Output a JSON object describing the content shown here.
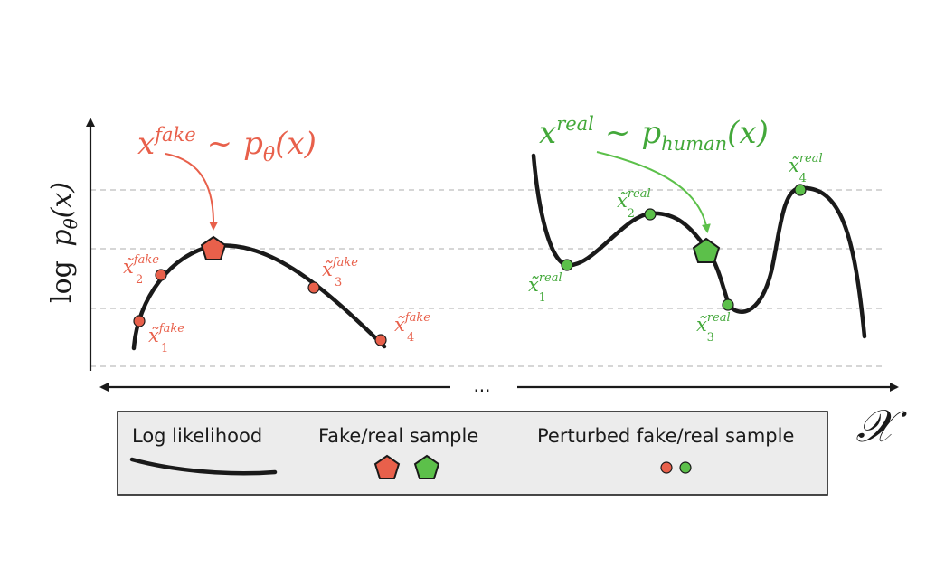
{
  "colors": {
    "fake": "#e8604b",
    "real": "#5cc04a",
    "real_text": "#43a83a",
    "curve": "#1a1a1a",
    "grid": "#c8c8c8",
    "legend_bg": "#ececec"
  },
  "y_axis": {
    "label_log": "log",
    "label_p": "p",
    "label_theta": "θ",
    "label_x": "(x)"
  },
  "x_axis": {
    "symbol": "𝒳",
    "ellipsis": "..."
  },
  "fake_title": {
    "x": "x",
    "sup": "fake",
    "tilde": "~",
    "p": "p",
    "sub": "θ",
    "arg": "(x)"
  },
  "real_title": {
    "x": "x",
    "sup": "real",
    "tilde": "~",
    "p": "p",
    "sub": "human",
    "arg": "(x)"
  },
  "fake_points": [
    {
      "base": "x̃",
      "sup": "fake",
      "sub": "1"
    },
    {
      "base": "x̃",
      "sup": "fake",
      "sub": "2"
    },
    {
      "base": "x̃",
      "sup": "fake",
      "sub": "3"
    },
    {
      "base": "x̃",
      "sup": "fake",
      "sub": "4"
    }
  ],
  "real_points": [
    {
      "base": "x̃",
      "sup": "real",
      "sub": "1"
    },
    {
      "base": "x̃",
      "sup": "real",
      "sub": "2"
    },
    {
      "base": "x̃",
      "sup": "real",
      "sub": "3"
    },
    {
      "base": "x̃",
      "sup": "real",
      "sub": "4"
    }
  ],
  "legend": {
    "log_likelihood": "Log likelihood",
    "sample": "Fake/real sample",
    "perturbed": "Perturbed fake/real sample"
  }
}
